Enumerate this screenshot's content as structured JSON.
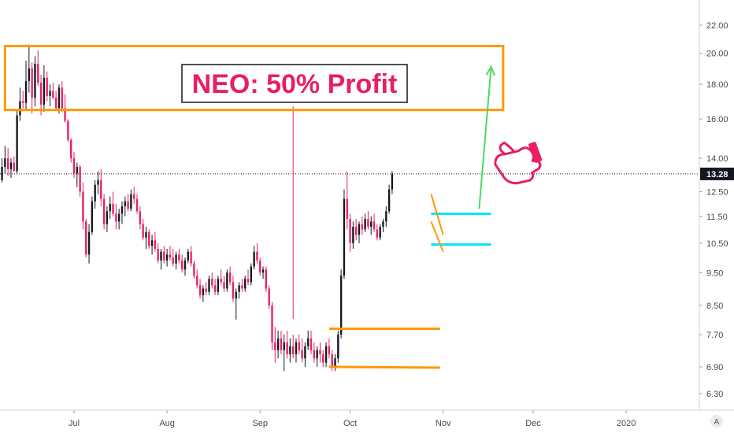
{
  "colors": {
    "bull": "#131722",
    "bear": "#e91e63",
    "range_box": "#ff9800",
    "channel": "#ff9800",
    "consolidation": "#00e5ff",
    "target_arrow": "#4cd964",
    "title_text": "#e91e63",
    "title_border": "#131722",
    "hand": "#e91e63",
    "price_line": "#131722"
  },
  "annotations": {
    "title": "NEO: 50% Profit"
  },
  "current_price": {
    "label": "13.28",
    "value": 13.28
  },
  "corner": {
    "label": "A"
  },
  "chart_data": {
    "type": "candlestick",
    "title": "NEO: 50% Profit",
    "y_scale": "log",
    "ylim": [
      6.0,
      23.5
    ],
    "yticks": [
      {
        "label": "22.00",
        "value": 22.0
      },
      {
        "label": "20.00",
        "value": 20.0
      },
      {
        "label": "18.00",
        "value": 18.0
      },
      {
        "label": "16.00",
        "value": 16.0
      },
      {
        "label": "14.00",
        "value": 14.0
      },
      {
        "label": "12.50",
        "value": 12.5
      },
      {
        "label": "11.50",
        "value": 11.5
      },
      {
        "label": "10.50",
        "value": 10.5
      },
      {
        "label": "9.50",
        "value": 9.5
      },
      {
        "label": "8.50",
        "value": 8.5
      },
      {
        "label": "7.70",
        "value": 7.7
      },
      {
        "label": "6.90",
        "value": 6.9
      },
      {
        "label": "6.30",
        "value": 6.3
      }
    ],
    "x_start": "2019-06-01",
    "x_end": "2020-01-10",
    "xticks": [
      {
        "label": "Jul",
        "date": "2019-07-01"
      },
      {
        "label": "Aug",
        "date": "2019-08-01"
      },
      {
        "label": "Sep",
        "date": "2019-09-01"
      },
      {
        "label": "Oct",
        "date": "2019-10-01"
      },
      {
        "label": "Nov",
        "date": "2019-11-01"
      },
      {
        "label": "Dec",
        "date": "2019-12-01"
      },
      {
        "label": "2020",
        "date": "2020-01-01"
      }
    ],
    "candle_date_start": "2019-06-01",
    "candle_interval_days": 1,
    "candles_ohlc": [
      [
        12.6,
        12.8,
        11.3,
        11.9
      ],
      [
        11.9,
        12.4,
        11.4,
        12.2
      ],
      [
        12.2,
        12.9,
        11.6,
        11.7
      ],
      [
        11.7,
        12.8,
        11.6,
        12.5
      ],
      [
        12.5,
        13.5,
        12.3,
        13.2
      ],
      [
        13.2,
        13.7,
        12.8,
        13.0
      ],
      [
        13.0,
        14.0,
        12.9,
        13.6
      ],
      [
        13.6,
        14.6,
        13.3,
        14.0
      ],
      [
        14.0,
        14.5,
        13.2,
        13.5
      ],
      [
        13.5,
        14.0,
        13.1,
        13.8
      ],
      [
        13.8,
        14.1,
        13.4,
        13.4
      ],
      [
        13.4,
        16.5,
        13.3,
        16.2
      ],
      [
        16.2,
        17.8,
        15.9,
        17.0
      ],
      [
        17.0,
        17.6,
        16.6,
        16.9
      ],
      [
        16.9,
        19.5,
        16.5,
        18.2
      ],
      [
        18.2,
        20.6,
        17.5,
        19.0
      ],
      [
        19.0,
        19.4,
        16.3,
        17.2
      ],
      [
        17.2,
        19.8,
        16.7,
        19.3
      ],
      [
        19.3,
        20.2,
        17.9,
        18.1
      ],
      [
        18.1,
        18.6,
        16.2,
        16.8
      ],
      [
        16.8,
        19.2,
        16.4,
        18.4
      ],
      [
        18.4,
        18.8,
        17.0,
        17.3
      ],
      [
        17.3,
        18.0,
        16.7,
        17.6
      ],
      [
        17.6,
        18.1,
        17.1,
        17.2
      ],
      [
        17.2,
        17.6,
        16.5,
        16.6
      ],
      [
        16.6,
        18.0,
        16.3,
        17.8
      ],
      [
        17.8,
        18.2,
        16.4,
        16.6
      ],
      [
        16.6,
        17.4,
        15.8,
        15.9
      ],
      [
        15.9,
        16.0,
        14.8,
        14.9
      ],
      [
        14.9,
        15.0,
        13.8,
        14.0
      ],
      [
        14.0,
        14.3,
        13.1,
        13.3
      ],
      [
        13.3,
        13.8,
        12.7,
        13.6
      ],
      [
        13.6,
        13.7,
        12.3,
        12.5
      ],
      [
        12.5,
        12.9,
        11.0,
        11.3
      ],
      [
        11.3,
        11.4,
        10.0,
        10.1
      ],
      [
        10.1,
        11.2,
        9.8,
        10.9
      ],
      [
        10.9,
        12.3,
        10.8,
        12.1
      ],
      [
        12.1,
        13.0,
        11.8,
        12.8
      ],
      [
        12.8,
        13.4,
        12.4,
        13.0
      ],
      [
        13.0,
        13.5,
        11.9,
        12.2
      ],
      [
        12.2,
        12.4,
        11.0,
        11.2
      ],
      [
        11.2,
        11.9,
        10.9,
        11.7
      ],
      [
        11.7,
        12.3,
        11.4,
        12.0
      ],
      [
        12.0,
        12.5,
        11.5,
        11.6
      ],
      [
        11.6,
        12.0,
        11.0,
        11.3
      ],
      [
        11.3,
        11.8,
        11.0,
        11.6
      ],
      [
        11.6,
        12.1,
        11.2,
        11.9
      ],
      [
        11.9,
        12.3,
        11.5,
        12.1
      ],
      [
        12.1,
        12.4,
        11.7,
        11.8
      ],
      [
        11.8,
        12.6,
        11.7,
        12.4
      ],
      [
        12.4,
        12.7,
        12.0,
        12.2
      ],
      [
        12.2,
        12.4,
        11.6,
        11.7
      ],
      [
        11.7,
        11.9,
        11.0,
        11.2
      ],
      [
        11.2,
        11.4,
        10.6,
        10.7
      ],
      [
        10.7,
        11.1,
        10.3,
        10.9
      ],
      [
        10.9,
        11.0,
        10.3,
        10.4
      ],
      [
        10.4,
        10.8,
        10.1,
        10.6
      ],
      [
        10.6,
        10.9,
        10.2,
        10.3
      ],
      [
        10.3,
        10.5,
        9.8,
        9.9
      ],
      [
        9.9,
        10.3,
        9.6,
        10.2
      ],
      [
        10.2,
        10.4,
        9.8,
        9.9
      ],
      [
        9.9,
        10.3,
        9.7,
        10.1
      ],
      [
        10.1,
        10.4,
        9.9,
        10.0
      ],
      [
        10.0,
        10.3,
        9.7,
        9.8
      ],
      [
        9.8,
        10.2,
        9.6,
        10.1
      ],
      [
        10.1,
        10.3,
        9.8,
        9.9
      ],
      [
        9.9,
        10.1,
        9.5,
        9.6
      ],
      [
        9.6,
        10.0,
        9.4,
        9.9
      ],
      [
        9.9,
        10.3,
        9.8,
        10.2
      ],
      [
        10.2,
        10.4,
        9.7,
        9.8
      ],
      [
        9.8,
        9.9,
        9.3,
        9.4
      ],
      [
        9.4,
        9.6,
        9.0,
        9.1
      ],
      [
        9.1,
        9.3,
        8.7,
        8.8
      ],
      [
        8.8,
        9.1,
        8.6,
        9.0
      ],
      [
        9.0,
        9.2,
        8.8,
        8.9
      ],
      [
        8.9,
        9.4,
        8.8,
        9.3
      ],
      [
        9.3,
        9.5,
        9.0,
        9.1
      ],
      [
        9.1,
        9.3,
        8.8,
        8.9
      ],
      [
        8.9,
        9.4,
        8.8,
        9.3
      ],
      [
        9.3,
        9.6,
        9.1,
        9.2
      ],
      [
        9.2,
        9.4,
        8.9,
        9.0
      ],
      [
        9.0,
        9.6,
        8.9,
        9.5
      ],
      [
        9.5,
        9.7,
        9.1,
        9.2
      ],
      [
        9.2,
        9.4,
        8.6,
        8.7
      ],
      [
        8.7,
        9.0,
        8.1,
        8.9
      ],
      [
        8.9,
        9.2,
        8.7,
        9.1
      ],
      [
        9.1,
        9.3,
        8.9,
        9.0
      ],
      [
        9.0,
        9.4,
        8.9,
        9.3
      ],
      [
        9.3,
        9.6,
        9.1,
        9.2
      ],
      [
        9.2,
        9.8,
        9.1,
        9.7
      ],
      [
        9.7,
        10.4,
        9.6,
        10.2
      ],
      [
        10.2,
        10.5,
        9.8,
        9.9
      ],
      [
        9.9,
        10.0,
        9.4,
        9.5
      ],
      [
        9.5,
        9.7,
        9.3,
        9.6
      ],
      [
        9.6,
        9.7,
        8.9,
        9.0
      ],
      [
        9.0,
        9.1,
        8.4,
        8.5
      ],
      [
        8.5,
        8.6,
        7.3,
        7.5
      ],
      [
        7.5,
        7.9,
        7.0,
        7.3
      ],
      [
        7.3,
        7.8,
        7.1,
        7.6
      ],
      [
        7.6,
        7.8,
        7.2,
        7.3
      ],
      [
        7.3,
        7.7,
        6.8,
        7.5
      ],
      [
        7.5,
        7.8,
        7.1,
        7.2
      ],
      [
        7.2,
        7.6,
        7.0,
        7.4
      ],
      [
        7.4,
        7.7,
        7.1,
        7.2
      ],
      [
        7.2,
        7.6,
        7.0,
        7.5
      ],
      [
        7.5,
        7.7,
        7.2,
        7.3
      ],
      [
        7.3,
        7.6,
        7.0,
        7.1
      ],
      [
        7.1,
        7.5,
        6.9,
        7.4
      ],
      [
        7.4,
        7.8,
        7.3,
        7.6
      ],
      [
        7.6,
        7.8,
        7.2,
        7.3
      ],
      [
        7.3,
        7.5,
        7.0,
        7.1
      ],
      [
        7.1,
        7.4,
        6.9,
        7.3
      ],
      [
        7.3,
        7.5,
        7.0,
        7.2
      ],
      [
        7.2,
        7.3,
        6.9,
        7.0
      ],
      [
        7.0,
        7.5,
        6.9,
        7.4
      ],
      [
        7.4,
        7.6,
        7.1,
        7.2
      ],
      [
        7.2,
        7.3,
        6.8,
        6.9
      ],
      [
        6.9,
        7.2,
        6.8,
        7.1
      ],
      [
        7.1,
        7.8,
        7.0,
        7.7
      ],
      [
        7.7,
        9.6,
        7.6,
        9.4
      ],
      [
        9.4,
        12.6,
        9.3,
        12.2
      ],
      [
        12.2,
        13.4,
        11.0,
        11.4
      ],
      [
        11.4,
        11.6,
        10.2,
        10.5
      ],
      [
        10.5,
        11.3,
        10.3,
        11.1
      ],
      [
        11.1,
        11.4,
        10.6,
        10.8
      ],
      [
        10.8,
        11.3,
        10.5,
        11.2
      ],
      [
        11.2,
        11.5,
        10.8,
        11.0
      ],
      [
        11.0,
        11.6,
        10.9,
        11.4
      ],
      [
        11.4,
        11.7,
        11.0,
        11.1
      ],
      [
        11.1,
        11.5,
        10.8,
        11.3
      ],
      [
        11.3,
        11.6,
        10.9,
        11.0
      ],
      [
        11.0,
        11.2,
        10.6,
        10.7
      ],
      [
        10.7,
        11.2,
        10.6,
        11.1
      ],
      [
        11.1,
        11.4,
        10.9,
        11.3
      ],
      [
        11.3,
        11.9,
        11.1,
        11.7
      ],
      [
        11.7,
        12.8,
        11.6,
        12.6
      ],
      [
        12.6,
        13.4,
        12.4,
        13.28
      ]
    ],
    "levels": {
      "current_price": 13.28,
      "upper_box": {
        "top": 20.5,
        "bottom": 16.5,
        "from": "2019-06-08",
        "to": "2019-11-21"
      },
      "lower_channel": {
        "upper_start": 7.85,
        "upper_end": 7.85,
        "lower_start": 6.9,
        "lower_end": 6.88,
        "from": "2019-09-24",
        "to": "2019-10-31"
      },
      "consolidation": {
        "top": 11.6,
        "bottom": 10.45,
        "from": "2019-10-28",
        "to": "2019-11-17"
      },
      "vertical_marker_date": "2019-09-12",
      "target_arrow": {
        "from_date": "2019-11-13",
        "from_price": 11.8,
        "to_date": "2019-11-17",
        "to_price": 19.1
      }
    }
  }
}
